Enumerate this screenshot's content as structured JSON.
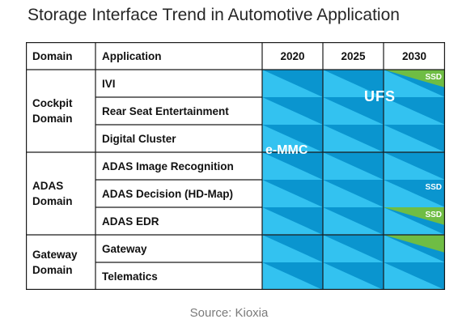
{
  "title": "Storage Interface Trend in Automotive Application",
  "table": {
    "header": {
      "domain": "Domain",
      "application": "Application",
      "years": [
        "2020",
        "2025",
        "2030"
      ]
    },
    "domains": [
      {
        "label": "Cockpit Domain",
        "line1": "Cockpit",
        "line2": "Domain"
      },
      {
        "label": "ADAS Domain",
        "line1": "ADAS",
        "line2": "Domain"
      },
      {
        "label": "Gateway Domain",
        "line1": "Gateway",
        "line2": "Domain"
      }
    ],
    "applications": [
      "IVI",
      "Rear Seat Entertainment",
      "Digital Cluster",
      "ADAS Image Recognition",
      "ADAS Decision (HD-Map)",
      "ADAS EDR",
      "Gateway",
      "Telematics"
    ]
  },
  "overlay": {
    "ufs": "UFS",
    "emmc": "e-MMC",
    "ssd": [
      "SSD",
      "SSD",
      "SSD"
    ]
  },
  "source": "Source: Kioxia",
  "colors": {
    "stripe_light": "#33c2f0",
    "stripe_dark": "#0a95cf",
    "ssd_green": "#6fbd44",
    "grid": "#1a1a1a"
  }
}
